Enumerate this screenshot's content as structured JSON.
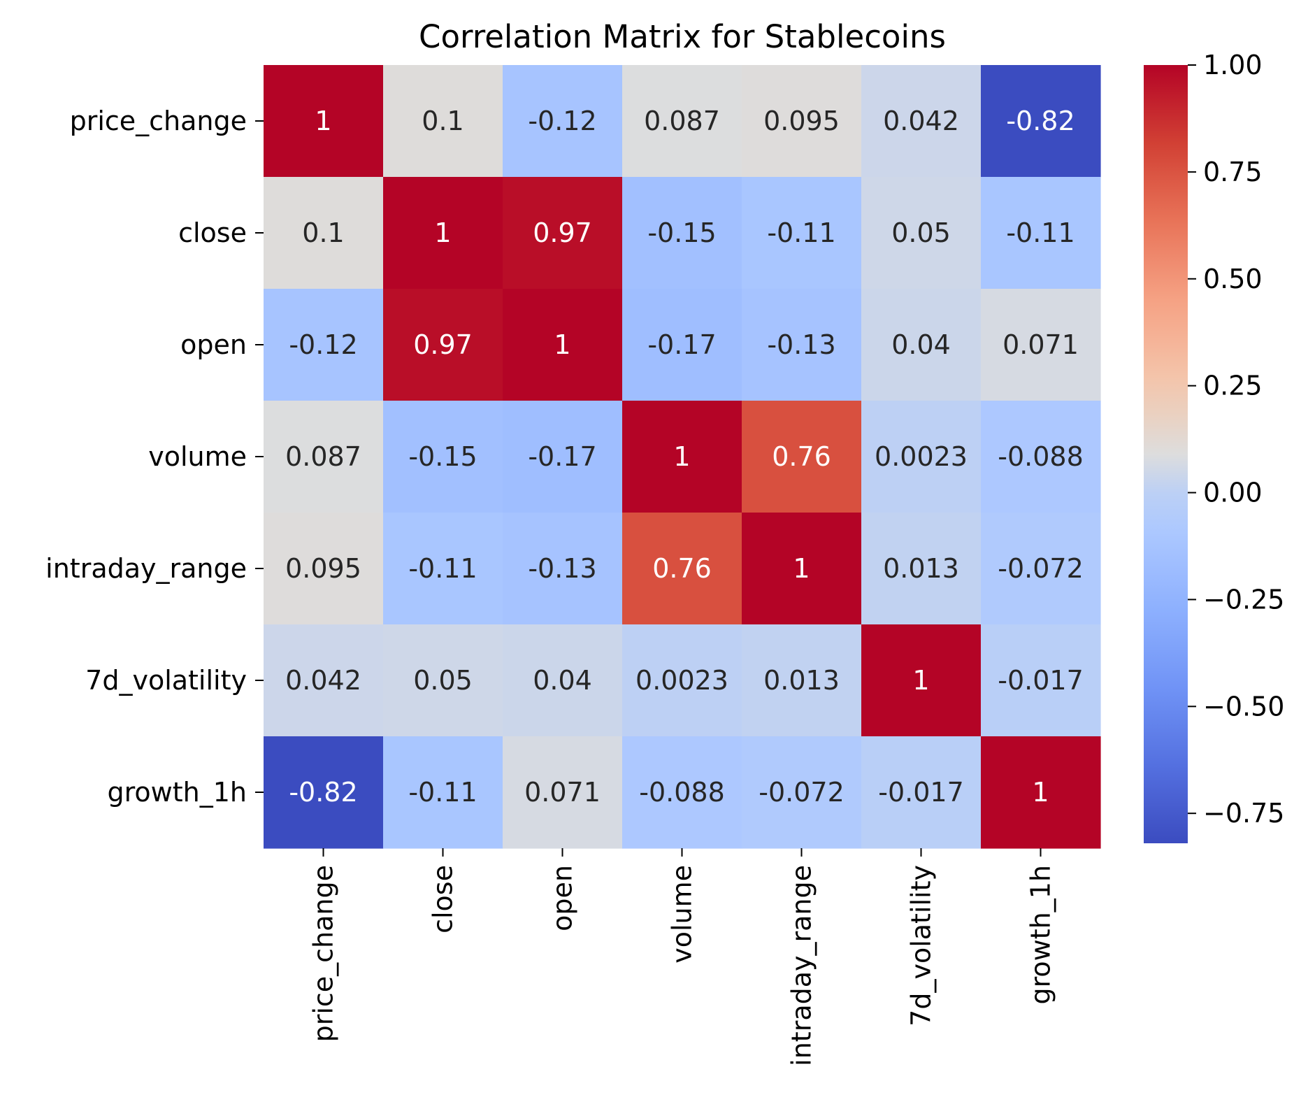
{
  "chart_data": {
    "type": "heatmap",
    "title": "Correlation Matrix for Stablecoins",
    "rows": [
      "price_change",
      "close",
      "open",
      "volume",
      "intraday_range",
      "7d_volatility",
      "growth_1h"
    ],
    "columns": [
      "price_change",
      "close",
      "open",
      "volume",
      "intraday_range",
      "7d_volatility",
      "growth_1h"
    ],
    "cell_labels": [
      [
        "1",
        "0.1",
        "-0.12",
        "0.087",
        "0.095",
        "0.042",
        "-0.82"
      ],
      [
        "0.1",
        "1",
        "0.97",
        "-0.15",
        "-0.11",
        "0.05",
        "-0.11"
      ],
      [
        "-0.12",
        "0.97",
        "1",
        "-0.17",
        "-0.13",
        "0.04",
        "0.071"
      ],
      [
        "0.087",
        "-0.15",
        "-0.17",
        "1",
        "0.76",
        "0.0023",
        "-0.088"
      ],
      [
        "0.095",
        "-0.11",
        "-0.13",
        "0.76",
        "1",
        "0.013",
        "-0.072"
      ],
      [
        "0.042",
        "0.05",
        "0.04",
        "0.0023",
        "0.013",
        "1",
        "-0.017"
      ],
      [
        "-0.82",
        "-0.11",
        "0.071",
        "-0.088",
        "-0.072",
        "-0.017",
        "1"
      ]
    ],
    "colormap": "coolwarm",
    "value_range": [
      -0.82,
      1.0
    ],
    "colorbar": {
      "location": "right",
      "ticks": [
        1.0,
        0.75,
        0.5,
        0.25,
        0.0,
        -0.25,
        -0.5,
        -0.75
      ],
      "tick_labels": [
        "1.00",
        "0.75",
        "0.50",
        "0.25",
        "0.00",
        "−0.25",
        "−0.50",
        "−0.75"
      ]
    },
    "grid": false
  }
}
